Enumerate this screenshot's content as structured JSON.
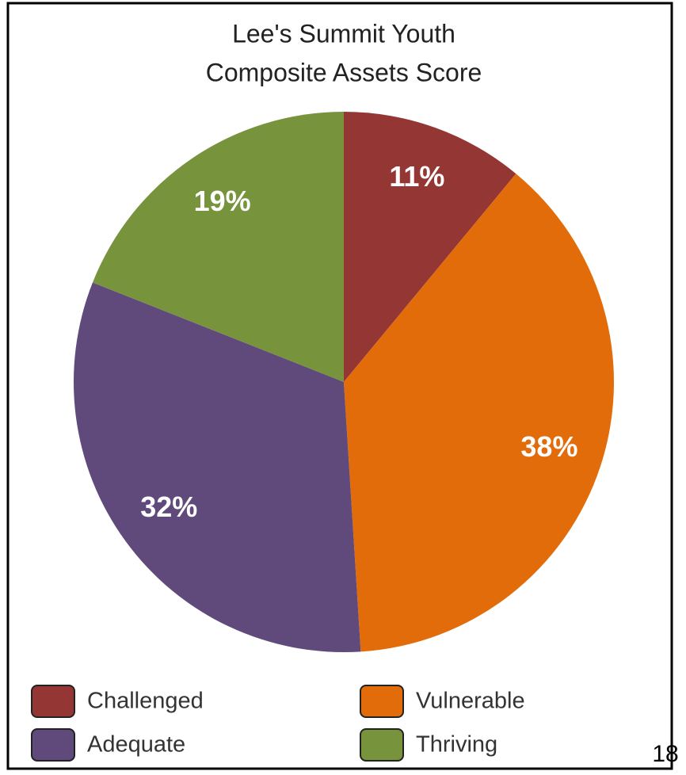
{
  "chart_data": {
    "type": "pie",
    "title": [
      "Lee's Summit Youth",
      "Composite Assets Score"
    ],
    "categories": [
      "Challenged",
      "Vulnerable",
      "Adequate",
      "Thriving"
    ],
    "values": [
      11,
      38,
      32,
      19
    ],
    "value_labels": [
      "11%",
      "38%",
      "32%",
      "19%"
    ],
    "colors": [
      "#943634",
      "#e36c0a",
      "#604a7b",
      "#77933c"
    ],
    "legend": "bottom"
  },
  "page_number": "18"
}
